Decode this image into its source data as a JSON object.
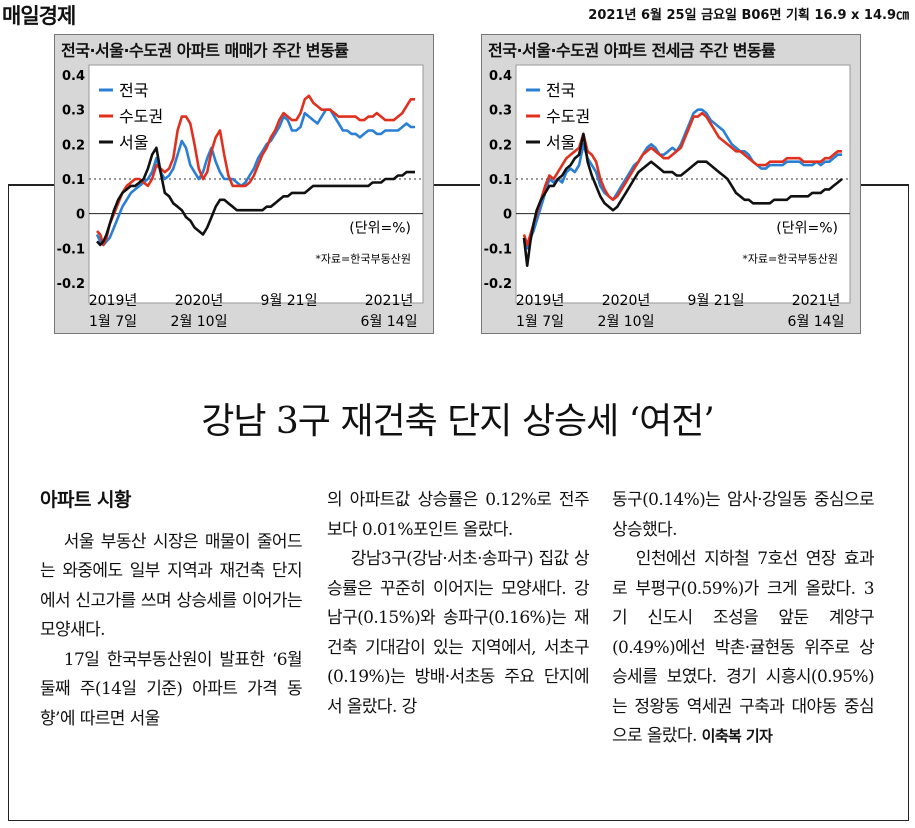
{
  "masthead": "매일경제",
  "pubinfo": "2021년 6월 25일 금요일 B06면 기획 16.9 x 14.9㎝",
  "chart_data": [
    {
      "type": "line",
      "title": "전국·서울·수도권 아파트 매매가 주간 변동률",
      "unit_note": "(단위=%)",
      "source": "*자료=한국부동산원",
      "ylim": [
        -0.2,
        0.4
      ],
      "y_ticks": [
        "0.4",
        "0.3",
        "0.2",
        "0.1",
        "0",
        "-0.1",
        "-0.2"
      ],
      "x_ticks": [
        {
          "line1": "2019년",
          "line2": "1월 7일"
        },
        {
          "line1": "2020년",
          "line2": "2월 10일"
        },
        {
          "line1": "9월 21일",
          "line2": ""
        },
        {
          "line1": "2021년",
          "line2": "6월 14일"
        }
      ],
      "legend": [
        "전국",
        "수도권",
        "서울"
      ],
      "x": [
        0,
        3,
        6,
        9,
        12,
        16,
        20,
        24,
        28,
        32,
        36,
        40,
        44,
        48,
        52,
        56,
        60,
        64,
        68,
        72,
        76,
        80,
        84,
        88,
        92,
        96,
        100,
        104,
        108,
        112,
        116,
        120,
        124,
        128,
        132,
        136,
        140,
        144,
        148,
        152,
        156,
        160,
        164,
        168,
        172,
        176,
        180,
        184,
        188,
        192,
        196,
        200,
        204,
        208,
        212,
        216,
        220,
        224,
        228,
        232,
        236,
        240,
        244,
        248,
        252,
        256,
        260,
        264,
        268,
        272,
        276,
        280,
        284,
        288,
        292,
        296,
        300
      ],
      "series": [
        {
          "name": "전국",
          "color": "#2a7fd4",
          "values": [
            -0.06,
            -0.08,
            -0.09,
            -0.08,
            -0.07,
            -0.04,
            -0.01,
            0.02,
            0.04,
            0.06,
            0.07,
            0.08,
            0.09,
            0.1,
            0.12,
            0.16,
            0.12,
            0.1,
            0.11,
            0.13,
            0.17,
            0.21,
            0.19,
            0.14,
            0.12,
            0.1,
            0.12,
            0.16,
            0.19,
            0.15,
            0.12,
            0.1,
            0.1,
            0.1,
            0.09,
            0.08,
            0.09,
            0.11,
            0.13,
            0.16,
            0.18,
            0.2,
            0.21,
            0.23,
            0.25,
            0.28,
            0.27,
            0.24,
            0.24,
            0.25,
            0.29,
            0.28,
            0.27,
            0.26,
            0.28,
            0.3,
            0.3,
            0.28,
            0.26,
            0.24,
            0.24,
            0.23,
            0.23,
            0.22,
            0.23,
            0.24,
            0.24,
            0.23,
            0.23,
            0.24,
            0.24,
            0.24,
            0.24,
            0.25,
            0.26,
            0.25,
            0.25
          ]
        },
        {
          "name": "수도권",
          "color": "#e0301e",
          "values": [
            -0.05,
            -0.06,
            -0.09,
            -0.07,
            -0.03,
            0.0,
            0.03,
            0.06,
            0.08,
            0.09,
            0.1,
            0.1,
            0.09,
            0.08,
            0.1,
            0.14,
            0.13,
            0.12,
            0.13,
            0.16,
            0.24,
            0.28,
            0.28,
            0.26,
            0.2,
            0.13,
            0.1,
            0.12,
            0.18,
            0.22,
            0.24,
            0.17,
            0.11,
            0.08,
            0.08,
            0.08,
            0.08,
            0.09,
            0.11,
            0.14,
            0.17,
            0.19,
            0.22,
            0.24,
            0.27,
            0.29,
            0.28,
            0.27,
            0.27,
            0.29,
            0.33,
            0.34,
            0.32,
            0.31,
            0.3,
            0.3,
            0.3,
            0.29,
            0.28,
            0.28,
            0.28,
            0.28,
            0.28,
            0.27,
            0.27,
            0.28,
            0.28,
            0.29,
            0.28,
            0.27,
            0.27,
            0.27,
            0.28,
            0.29,
            0.31,
            0.33,
            0.33
          ]
        },
        {
          "name": "서울",
          "color": "#111111",
          "values": [
            -0.08,
            -0.09,
            -0.08,
            -0.06,
            -0.03,
            0.01,
            0.04,
            0.06,
            0.07,
            0.08,
            0.08,
            0.09,
            0.1,
            0.13,
            0.17,
            0.19,
            0.12,
            0.06,
            0.05,
            0.03,
            0.02,
            0.01,
            -0.01,
            -0.02,
            -0.04,
            -0.05,
            -0.06,
            -0.04,
            -0.01,
            0.02,
            0.04,
            0.04,
            0.03,
            0.02,
            0.01,
            0.01,
            0.01,
            0.01,
            0.01,
            0.01,
            0.01,
            0.02,
            0.02,
            0.03,
            0.04,
            0.05,
            0.05,
            0.06,
            0.06,
            0.06,
            0.06,
            0.07,
            0.08,
            0.08,
            0.08,
            0.08,
            0.08,
            0.08,
            0.08,
            0.08,
            0.08,
            0.08,
            0.08,
            0.08,
            0.08,
            0.08,
            0.09,
            0.09,
            0.09,
            0.1,
            0.1,
            0.1,
            0.11,
            0.11,
            0.12,
            0.12,
            0.12
          ]
        }
      ]
    },
    {
      "type": "line",
      "title": "전국·서울·수도권 아파트 전세금 주간 변동률",
      "unit_note": "(단위=%)",
      "source": "*자료=한국부동산원",
      "ylim": [
        -0.2,
        0.4
      ],
      "y_ticks": [
        "0.4",
        "0.3",
        "0.2",
        "0.1",
        "0",
        "-0.1",
        "-0.2"
      ],
      "x_ticks": [
        {
          "line1": "2019년",
          "line2": "1월 7일"
        },
        {
          "line1": "2020년",
          "line2": "2월 10일"
        },
        {
          "line1": "9월 21일",
          "line2": ""
        },
        {
          "line1": "2021년",
          "line2": "6월 14일"
        }
      ],
      "legend": [
        "전국",
        "수도권",
        "서울"
      ],
      "x": [
        0,
        3,
        6,
        9,
        12,
        16,
        20,
        24,
        28,
        32,
        36,
        40,
        44,
        48,
        52,
        56,
        60,
        64,
        68,
        72,
        76,
        80,
        84,
        88,
        92,
        96,
        100,
        104,
        108,
        112,
        116,
        120,
        124,
        128,
        132,
        136,
        140,
        144,
        148,
        152,
        156,
        160,
        164,
        168,
        172,
        176,
        180,
        184,
        188,
        192,
        196,
        200,
        204,
        208,
        212,
        216,
        220,
        224,
        228,
        232,
        236,
        240,
        244,
        248,
        252,
        256,
        260,
        264,
        268,
        272,
        276,
        280,
        284,
        288,
        292,
        296,
        300
      ],
      "series": [
        {
          "name": "전국",
          "color": "#2a7fd4",
          "values": [
            -0.08,
            -0.1,
            -0.07,
            -0.05,
            -0.02,
            0.02,
            0.06,
            0.1,
            0.09,
            0.1,
            0.09,
            0.12,
            0.13,
            0.12,
            0.14,
            0.2,
            0.16,
            0.14,
            0.12,
            0.08,
            0.06,
            0.05,
            0.04,
            0.06,
            0.08,
            0.1,
            0.12,
            0.14,
            0.15,
            0.17,
            0.19,
            0.2,
            0.19,
            0.17,
            0.17,
            0.18,
            0.19,
            0.18,
            0.2,
            0.23,
            0.26,
            0.29,
            0.3,
            0.3,
            0.29,
            0.27,
            0.26,
            0.25,
            0.24,
            0.22,
            0.2,
            0.19,
            0.18,
            0.18,
            0.17,
            0.15,
            0.14,
            0.13,
            0.13,
            0.14,
            0.14,
            0.14,
            0.14,
            0.15,
            0.15,
            0.15,
            0.15,
            0.14,
            0.14,
            0.14,
            0.15,
            0.14,
            0.15,
            0.15,
            0.16,
            0.17,
            0.17
          ]
        },
        {
          "name": "수도권",
          "color": "#e0301e",
          "values": [
            -0.06,
            -0.09,
            -0.06,
            -0.03,
            0.0,
            0.04,
            0.08,
            0.11,
            0.1,
            0.12,
            0.14,
            0.16,
            0.17,
            0.18,
            0.19,
            0.23,
            0.18,
            0.17,
            0.15,
            0.1,
            0.07,
            0.05,
            0.04,
            0.05,
            0.07,
            0.09,
            0.11,
            0.13,
            0.15,
            0.17,
            0.18,
            0.19,
            0.18,
            0.17,
            0.16,
            0.16,
            0.17,
            0.18,
            0.19,
            0.22,
            0.25,
            0.28,
            0.28,
            0.29,
            0.28,
            0.26,
            0.24,
            0.22,
            0.21,
            0.2,
            0.19,
            0.18,
            0.18,
            0.17,
            0.16,
            0.15,
            0.14,
            0.14,
            0.14,
            0.15,
            0.15,
            0.15,
            0.15,
            0.16,
            0.16,
            0.16,
            0.16,
            0.15,
            0.15,
            0.15,
            0.15,
            0.15,
            0.16,
            0.16,
            0.17,
            0.18,
            0.18
          ]
        },
        {
          "name": "서울",
          "color": "#111111",
          "values": [
            -0.07,
            -0.15,
            -0.08,
            -0.03,
            0.01,
            0.04,
            0.06,
            0.08,
            0.08,
            0.1,
            0.11,
            0.13,
            0.14,
            0.16,
            0.17,
            0.23,
            0.15,
            0.11,
            0.08,
            0.05,
            0.03,
            0.02,
            0.01,
            0.02,
            0.04,
            0.06,
            0.08,
            0.1,
            0.12,
            0.13,
            0.14,
            0.15,
            0.14,
            0.13,
            0.12,
            0.12,
            0.12,
            0.11,
            0.11,
            0.12,
            0.13,
            0.14,
            0.15,
            0.15,
            0.15,
            0.14,
            0.13,
            0.12,
            0.11,
            0.1,
            0.08,
            0.06,
            0.05,
            0.04,
            0.04,
            0.03,
            0.03,
            0.03,
            0.03,
            0.03,
            0.04,
            0.04,
            0.04,
            0.04,
            0.05,
            0.05,
            0.05,
            0.05,
            0.05,
            0.06,
            0.06,
            0.06,
            0.07,
            0.07,
            0.08,
            0.09,
            0.1
          ]
        }
      ]
    }
  ],
  "headline": "강남 3구 재건축 단지 상승세 ‘여전’",
  "article": {
    "section": "아파트 시황",
    "col1": [
      "서울 부동산 시장은 매물이 줄어드는 와중에도 일부 지역과 재건축 단지에서 신고가를 쓰며 상승세를 이어가는 모양새다.",
      "17일 한국부동산원이 발표한 ‘6월 둘째 주(14일 기준) 아파트 가격 동향’에 따르면 서울"
    ],
    "col2": [
      "의 아파트값 상승률은 0.12%로 전주보다 0.01%포인트 올랐다.",
      "강남3구(강남·서초·송파구) 집값 상승률은 꾸준히 이어지는 모양새다. 강남구(0.15%)와 송파구(0.16%)는 재건축 기대감이 있는 지역에서, 서초구(0.19%)는 방배·서초동 주요 단지에서 올랐다. 강"
    ],
    "col3": [
      "동구(0.14%)는 암사·강일동 중심으로 상승했다.",
      "인천에선 지하철 7호선 연장 효과로 부평구(0.59%)가 크게 올랐다. 3기 신도시 조성을 앞둔 계양구(0.49%)에선 박촌·귤현동 위주로 상승세를 보였다. 경기 시흥시(0.95%)는 정왕동 역세권 구축과 대야동 중심으로 올랐다."
    ],
    "byline": "이축복 기자"
  }
}
